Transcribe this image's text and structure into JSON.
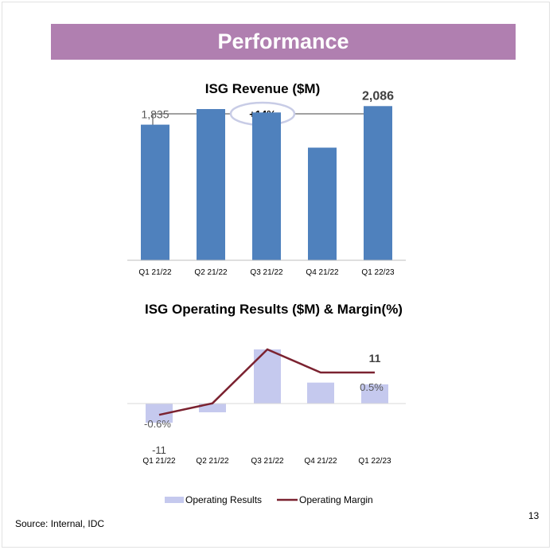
{
  "slide": {
    "title": "Performance",
    "source": "Source: Internal, IDC",
    "page_number": "13"
  },
  "chart_data": [
    {
      "type": "bar",
      "title": "ISG Revenue ($M)",
      "categories": [
        "Q1 21/22",
        "Q2 21/22",
        "Q3 21/22",
        "Q4 21/22",
        "Q1 22/23"
      ],
      "series": [
        {
          "values": [
            1835,
            2046,
            2000,
            1524,
            2086
          ],
          "color": "#4f81bd"
        }
      ],
      "data_labels": {
        "first": "1,835",
        "last": "2,086"
      },
      "annotation": "+14%",
      "ylim": [
        0,
        2800
      ]
    },
    {
      "type": "bar",
      "title": "ISG Operating Results ($M) & Margin(%)",
      "categories": [
        "Q1 21/22",
        "Q2 21/22",
        "Q3 21/22",
        "Q4 21/22",
        "Q1 22/23"
      ],
      "series": [
        {
          "name": "Operating Results",
          "type": "bar",
          "values": [
            -11,
            -5,
            31,
            12,
            11
          ],
          "color": "#c5c9ee"
        },
        {
          "name": "Operating Margin",
          "type": "line",
          "values": [
            -0.6,
            -0.3,
            1.1,
            0.5,
            0.5
          ],
          "unit": "%",
          "color": "#7b2230"
        }
      ],
      "data_labels": {
        "result_first": "-11",
        "result_last": "11",
        "margin_first": "-0.6%",
        "margin_last": "0.5%"
      },
      "legend": "bottom",
      "ylim": [
        -14,
        32
      ]
    }
  ]
}
